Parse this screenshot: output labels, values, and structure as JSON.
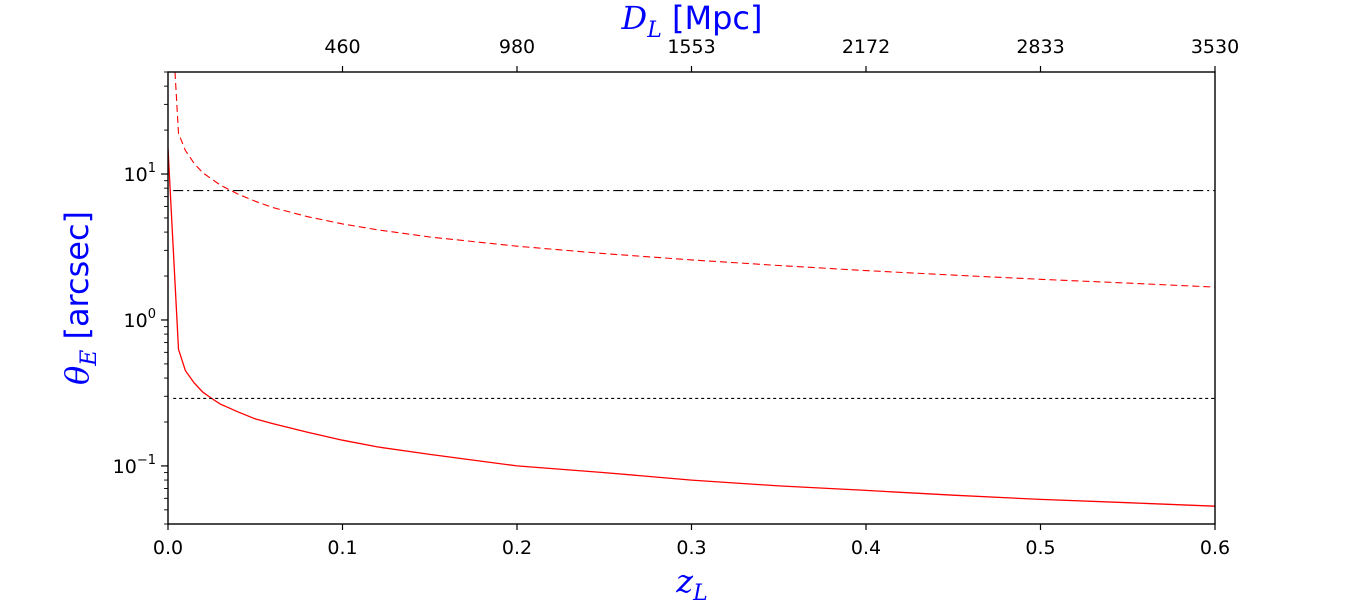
{
  "chart_data": {
    "type": "line",
    "xlabel": "z_L",
    "ylabel": "θ_E [arcsec]",
    "top_xlabel": "D_L [Mpc]",
    "xlim": [
      0.0,
      0.6
    ],
    "ylim": [
      0.04,
      50
    ],
    "yscale": "log",
    "grid": false,
    "x_ticks": [
      0.0,
      0.1,
      0.2,
      0.3,
      0.4,
      0.5,
      0.6
    ],
    "x_tick_labels": [
      "0.0",
      "0.1",
      "0.2",
      "0.3",
      "0.4",
      "0.5",
      "0.6"
    ],
    "y_ticks": [
      0.1,
      1,
      10
    ],
    "y_tick_labels": [
      "10",
      "10",
      "10"
    ],
    "y_tick_exponents": [
      "−1",
      "0",
      "1"
    ],
    "top_x_ticks": [
      0.1,
      0.2,
      0.3,
      0.4,
      0.5,
      0.6
    ],
    "top_x_tick_labels": [
      "460",
      "980",
      "1553",
      "2172",
      "2833",
      "3530"
    ],
    "series": [
      {
        "color": "#ff0000",
        "style": "solid",
        "x": [
          0.0,
          0.006,
          0.01,
          0.015,
          0.02,
          0.025,
          0.03,
          0.04,
          0.05,
          0.06,
          0.08,
          0.1,
          0.12,
          0.15,
          0.2,
          0.25,
          0.3,
          0.35,
          0.4,
          0.45,
          0.5,
          0.55,
          0.6
        ],
        "y": [
          15,
          0.63,
          0.45,
          0.37,
          0.32,
          0.29,
          0.265,
          0.235,
          0.21,
          0.195,
          0.17,
          0.15,
          0.135,
          0.12,
          0.1,
          0.09,
          0.08,
          0.073,
          0.068,
          0.063,
          0.059,
          0.056,
          0.053
        ]
      },
      {
        "color": "#ff0000",
        "style": "dashed",
        "x": [
          0.004,
          0.006,
          0.01,
          0.015,
          0.02,
          0.03,
          0.04,
          0.05,
          0.06,
          0.08,
          0.1,
          0.12,
          0.15,
          0.2,
          0.25,
          0.3,
          0.35,
          0.4,
          0.45,
          0.5,
          0.55,
          0.6
        ],
        "y": [
          50,
          19,
          14.5,
          11.8,
          10.2,
          8.4,
          7.3,
          6.5,
          5.9,
          5.1,
          4.55,
          4.15,
          3.7,
          3.2,
          2.85,
          2.58,
          2.36,
          2.18,
          2.03,
          1.9,
          1.79,
          1.68
        ]
      },
      {
        "color": "#000000",
        "style": "dashdot",
        "x": [
          0.003,
          0.6
        ],
        "y": [
          7.7,
          7.7
        ]
      },
      {
        "color": "#000000",
        "style": "dotted",
        "x": [
          0.003,
          0.6
        ],
        "y": [
          0.29,
          0.29
        ]
      }
    ]
  }
}
